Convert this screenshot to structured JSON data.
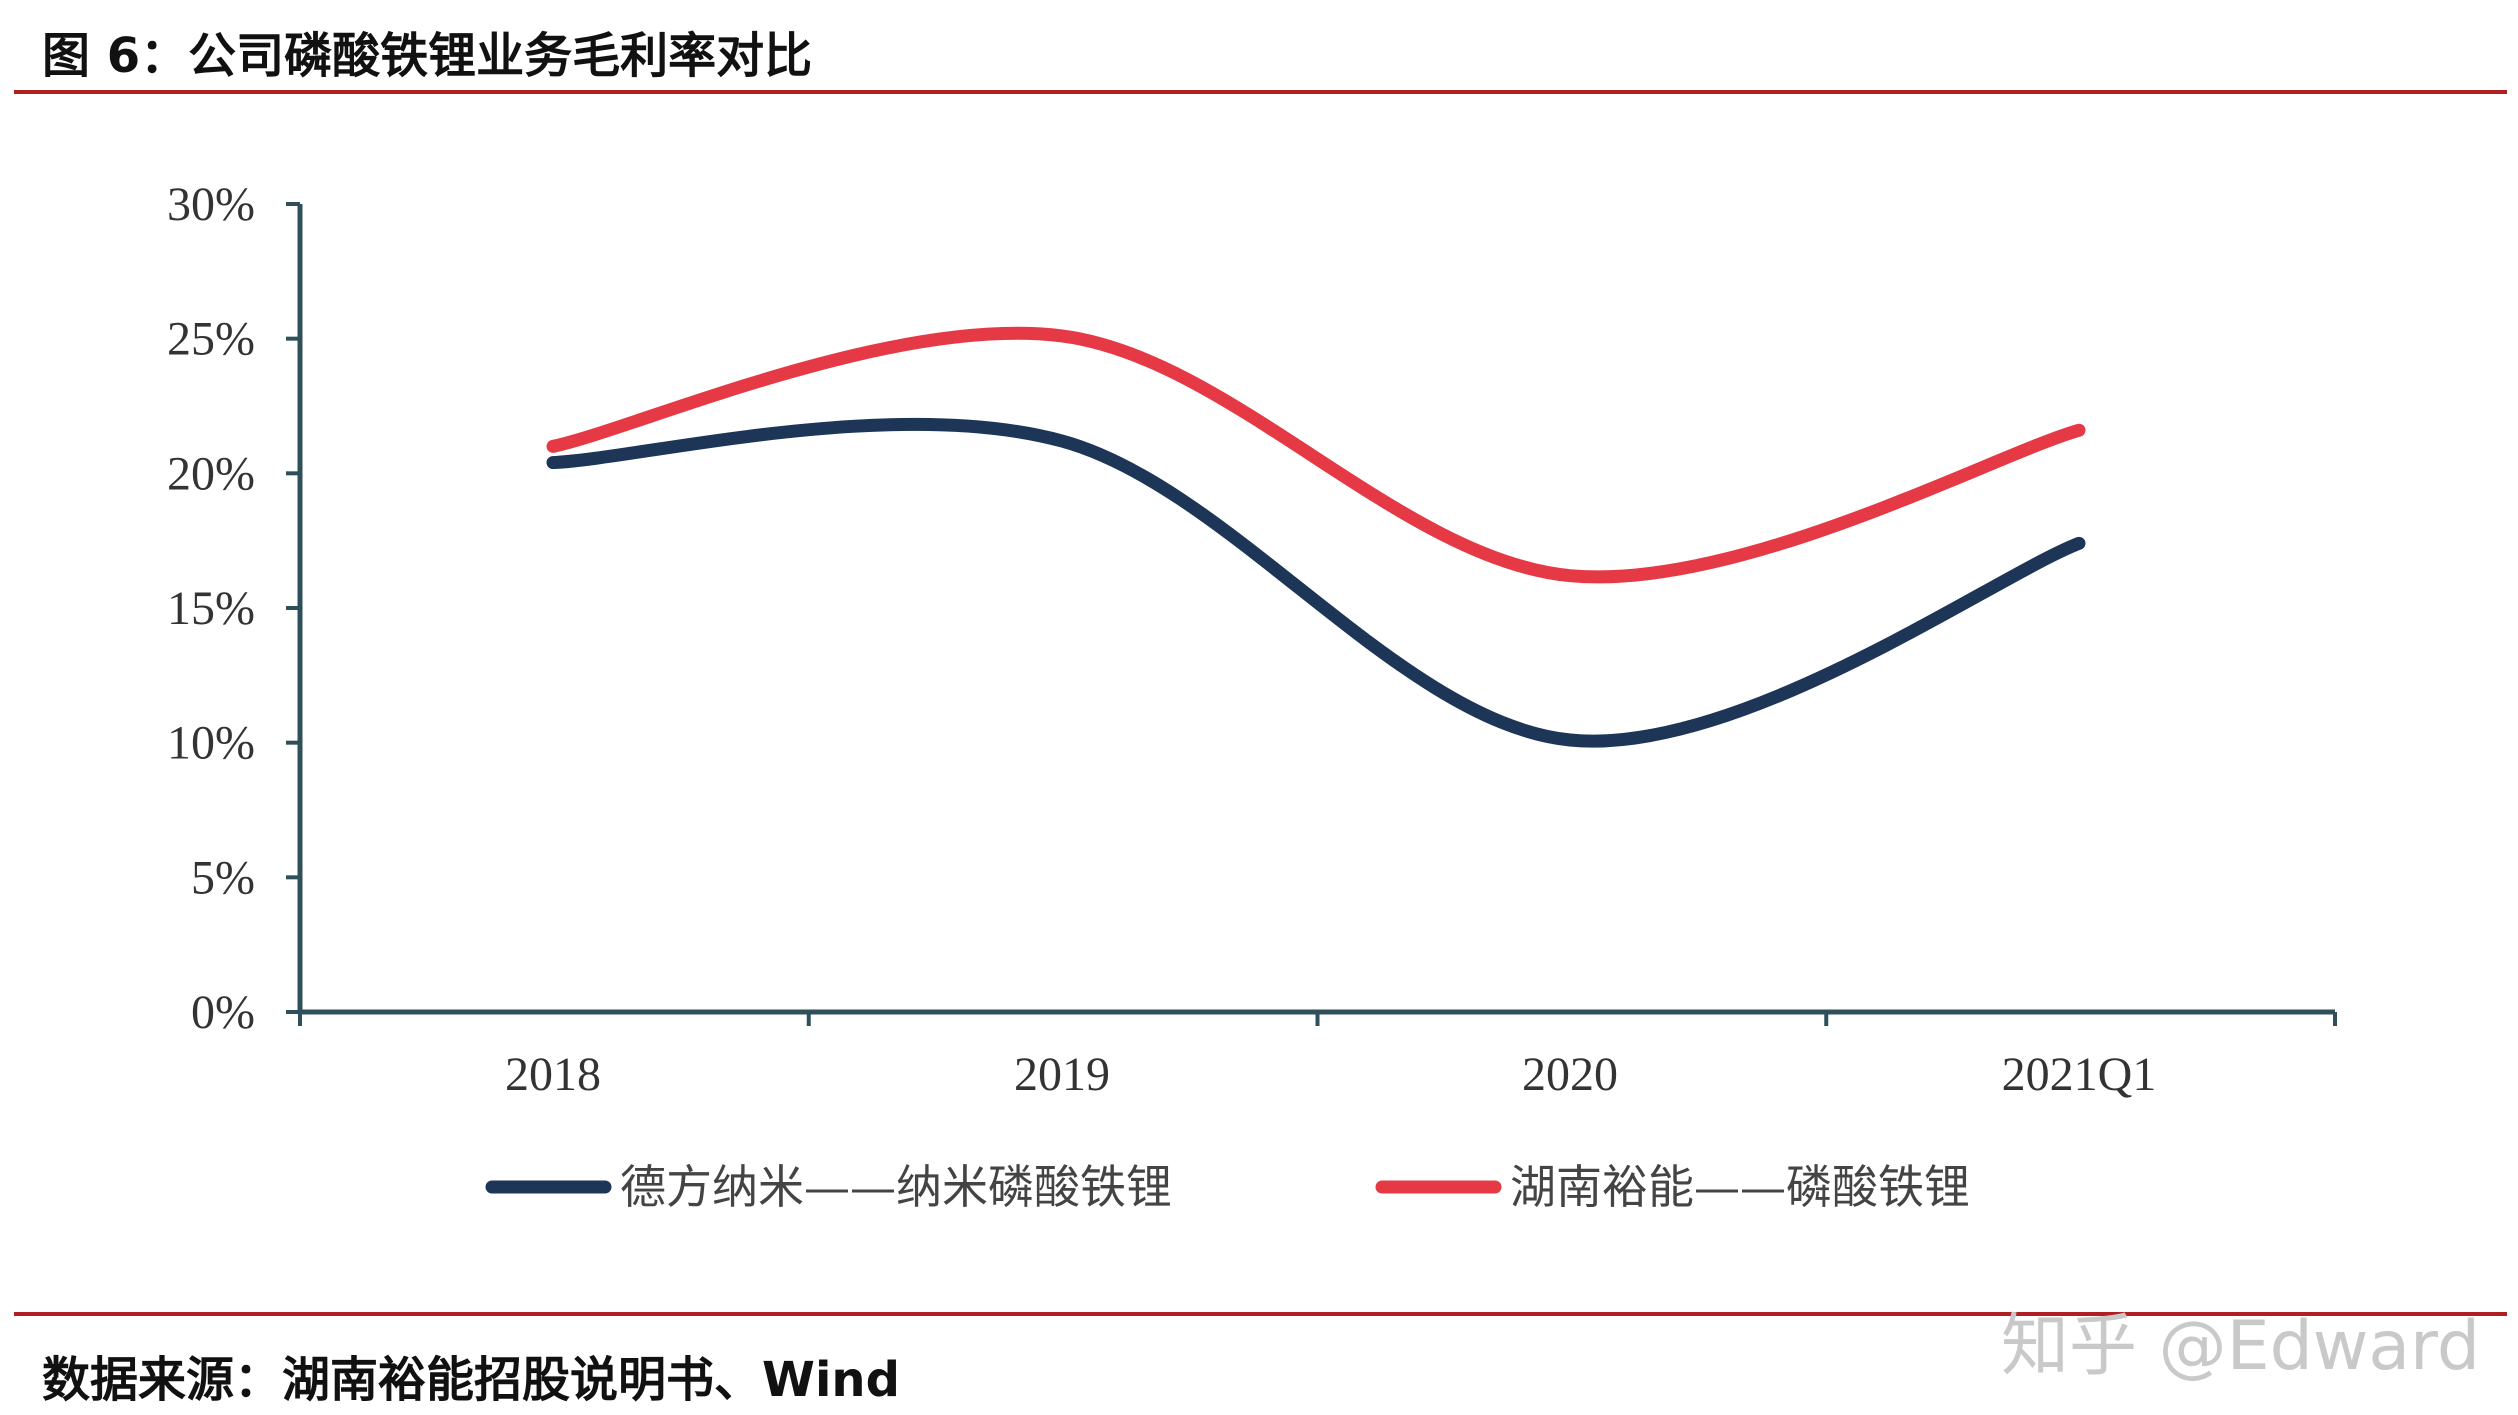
{
  "header": {
    "title": "图 6：公司磷酸铁锂业务毛利率对比"
  },
  "footer": {
    "source": "数据来源：湖南裕能招股说明书、Wind",
    "watermark": "知乎 @Edward"
  },
  "colors": {
    "rule": "#b01f24",
    "series_1": "#1d3557",
    "series_2": "#e63946",
    "axis": "#2f4f5a"
  },
  "chart_data": {
    "type": "line",
    "title": "",
    "xlabel": "",
    "ylabel": "",
    "categories": [
      "2018",
      "2019",
      "2020",
      "2021Q1"
    ],
    "ylim": [
      0,
      30
    ],
    "yticks": [
      "0%",
      "5%",
      "10%",
      "15%",
      "20%",
      "25%",
      "30%"
    ],
    "smooth": true,
    "grid": false,
    "legend_position": "bottom",
    "series": [
      {
        "name": "德方纳米——纳米磷酸铁锂",
        "values": [
          20.4,
          21.2,
          10.1,
          17.4
        ],
        "color": "#1d3557"
      },
      {
        "name": "湖南裕能——磷酸铁锂",
        "values": [
          21.0,
          25.1,
          16.2,
          21.6
        ],
        "color": "#e63946"
      }
    ]
  }
}
